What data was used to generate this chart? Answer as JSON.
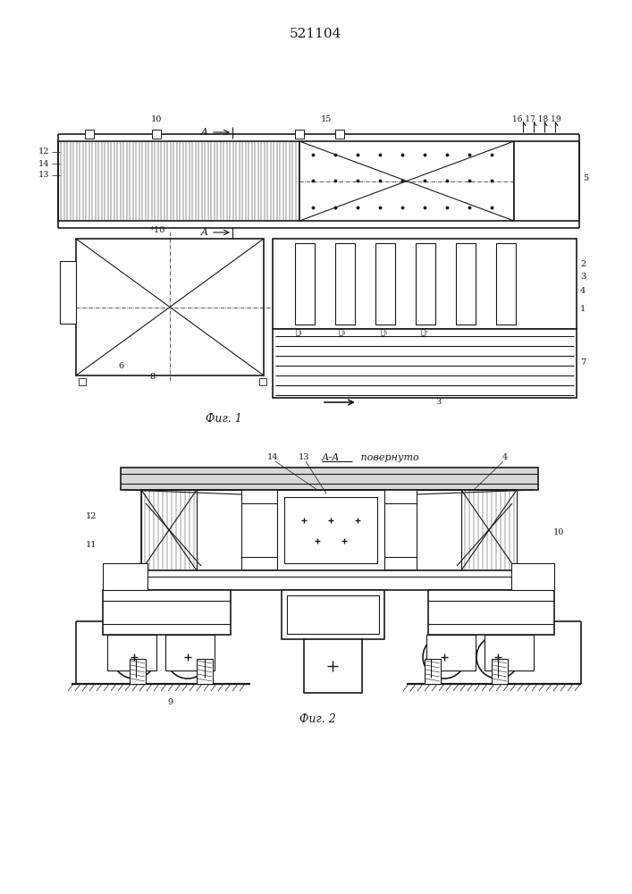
{
  "title": "521104",
  "fig1_label": "Фиг. 1",
  "fig2_label": "Фиг. 2",
  "fig2_section_label": "А-А повернуто",
  "line_color": "#1a1a1a",
  "fig_width": 7.07,
  "fig_height": 10.0
}
